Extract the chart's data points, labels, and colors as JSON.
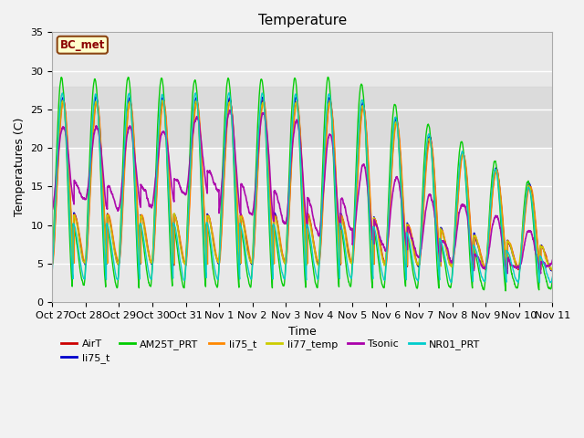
{
  "title": "Temperature",
  "ylabel": "Temperatures (C)",
  "xlabel": "Time",
  "ylim": [
    0,
    35
  ],
  "shade_ymin": 20,
  "shade_ymax": 28,
  "shade_color": "#d3d3d3",
  "bc_met_label": "BC_met",
  "bc_met_box_facecolor": "#ffffcc",
  "bc_met_box_edgecolor": "#8B4513",
  "series": [
    {
      "name": "AirT",
      "color": "#cc0000",
      "lw": 1.0
    },
    {
      "name": "li75_t",
      "color": "#0000cc",
      "lw": 1.0
    },
    {
      "name": "AM25T_PRT",
      "color": "#00cc00",
      "lw": 1.0
    },
    {
      "name": "li75_t",
      "color": "#ff8800",
      "lw": 1.0
    },
    {
      "name": "li77_temp",
      "color": "#cccc00",
      "lw": 1.0
    },
    {
      "name": "Tsonic",
      "color": "#aa00aa",
      "lw": 1.2
    },
    {
      "name": "NR01_PRT",
      "color": "#00cccc",
      "lw": 1.0
    }
  ],
  "xtick_labels": [
    "Oct 27",
    "Oct 28",
    "Oct 29",
    "Oct 30",
    "Oct 31",
    "Nov 1",
    "Nov 2",
    "Nov 3",
    "Nov 4",
    "Nov 5",
    "Nov 6",
    "Nov 7",
    "Nov 8",
    "Nov 9",
    "Nov 10",
    "Nov 11"
  ],
  "xtick_positions": [
    0,
    1,
    2,
    3,
    4,
    5,
    6,
    7,
    8,
    9,
    10,
    11,
    12,
    13,
    14,
    15
  ],
  "ytick_positions": [
    0,
    5,
    10,
    15,
    20,
    25,
    30,
    35
  ],
  "ytick_labels": [
    "0",
    "5",
    "10",
    "15",
    "20",
    "25",
    "30",
    "35"
  ],
  "grid_color": "#ffffff",
  "plot_bg": "#e8e8e8",
  "title_fontsize": 11,
  "axis_fontsize": 9,
  "tick_fontsize": 8
}
